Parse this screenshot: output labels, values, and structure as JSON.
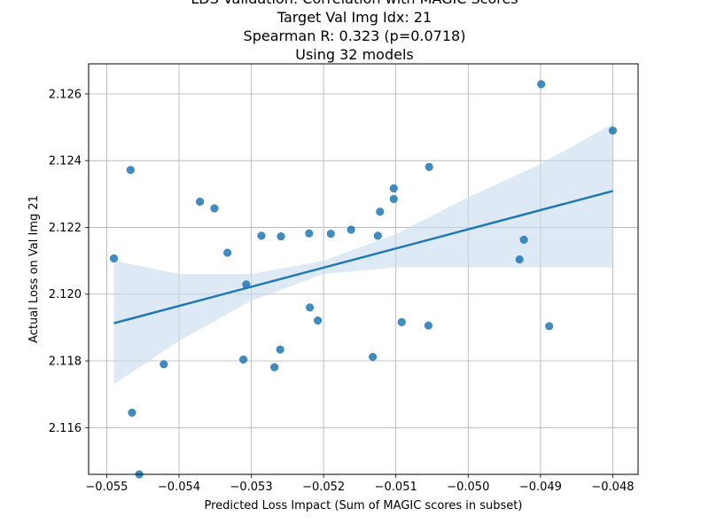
{
  "chart_data": {
    "type": "scatter",
    "title_lines": [
      "LDS Validation: Correlation with MAGIC Scores",
      "Target Val Img Idx: 21",
      "Spearman R: 0.323 (p=0.0718)",
      "Using 32 models"
    ],
    "xlabel": "Predicted Loss Impact (Sum of MAGIC scores in subset)",
    "ylabel": "Actual Loss on Val Img 21",
    "xlim": [
      -0.05525,
      -0.04765
    ],
    "ylim": [
      2.1146,
      2.1269
    ],
    "x_ticks": [
      -0.055,
      -0.054,
      -0.053,
      -0.052,
      -0.051,
      -0.05,
      -0.049,
      -0.048
    ],
    "x_tick_labels": [
      "−0.055",
      "−0.054",
      "−0.053",
      "−0.052",
      "−0.051",
      "−0.050",
      "−0.049",
      "−0.048"
    ],
    "y_ticks": [
      2.116,
      2.118,
      2.12,
      2.122,
      2.124,
      2.126
    ],
    "y_tick_labels": [
      "2.116",
      "2.118",
      "2.120",
      "2.122",
      "2.124",
      "2.126"
    ],
    "grid": true,
    "point_color": "#1f77b4",
    "line_color": "#1f77b4",
    "band_color": "#c6dbef",
    "points": [
      {
        "x": -0.0549,
        "y": 2.12107
      },
      {
        "x": -0.05467,
        "y": 2.12372
      },
      {
        "x": -0.05465,
        "y": 2.11645
      },
      {
        "x": -0.05455,
        "y": 2.1146
      },
      {
        "x": -0.05421,
        "y": 2.1179
      },
      {
        "x": -0.05371,
        "y": 2.12277
      },
      {
        "x": -0.05351,
        "y": 2.12257
      },
      {
        "x": -0.05333,
        "y": 2.12124
      },
      {
        "x": -0.05311,
        "y": 2.11804
      },
      {
        "x": -0.05307,
        "y": 2.12029
      },
      {
        "x": -0.05286,
        "y": 2.12175
      },
      {
        "x": -0.05268,
        "y": 2.11781
      },
      {
        "x": -0.05259,
        "y": 2.12173
      },
      {
        "x": -0.0526,
        "y": 2.11834
      },
      {
        "x": -0.0522,
        "y": 2.12182
      },
      {
        "x": -0.05219,
        "y": 2.1196
      },
      {
        "x": -0.05208,
        "y": 2.11921
      },
      {
        "x": -0.0519,
        "y": 2.12181
      },
      {
        "x": -0.05162,
        "y": 2.12193
      },
      {
        "x": -0.05132,
        "y": 2.11812
      },
      {
        "x": -0.05125,
        "y": 2.12175
      },
      {
        "x": -0.05122,
        "y": 2.12247
      },
      {
        "x": -0.05103,
        "y": 2.12317
      },
      {
        "x": -0.05103,
        "y": 2.12285
      },
      {
        "x": -0.05092,
        "y": 2.11916
      },
      {
        "x": -0.05054,
        "y": 2.12381
      },
      {
        "x": -0.05055,
        "y": 2.11906
      },
      {
        "x": -0.04929,
        "y": 2.12104
      },
      {
        "x": -0.04923,
        "y": 2.12163
      },
      {
        "x": -0.04899,
        "y": 2.12629
      },
      {
        "x": -0.04888,
        "y": 2.11904
      },
      {
        "x": -0.048,
        "y": 2.1249
      }
    ],
    "regression": {
      "x": [
        -0.0549,
        -0.048
      ],
      "y": [
        2.11913,
        2.12309
      ]
    },
    "confidence_band": {
      "x": [
        -0.0549,
        -0.054,
        -0.053,
        -0.052,
        -0.051,
        -0.05,
        -0.049,
        -0.048
      ],
      "upper": [
        2.121,
        2.1206,
        2.1206,
        2.121,
        2.1218,
        2.1229,
        2.1239,
        2.1251
      ],
      "lower": [
        2.1173,
        2.1186,
        2.1198,
        2.1206,
        2.1208,
        2.1208,
        2.1208,
        2.1208
      ]
    }
  }
}
